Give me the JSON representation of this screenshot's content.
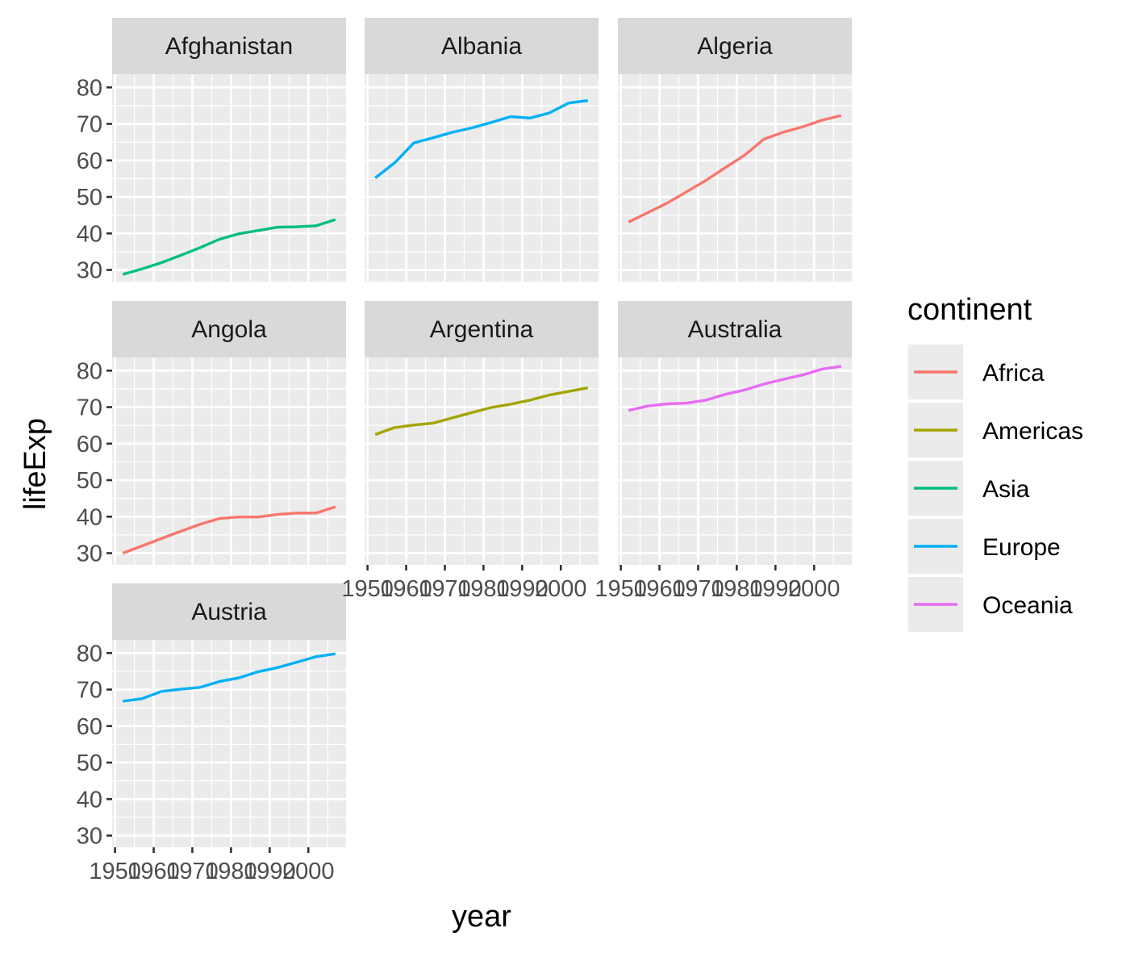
{
  "chart_data": {
    "type": "line",
    "xlabel": "year",
    "ylabel": "lifeExp",
    "xlim": [
      1949.25,
      2009.75
    ],
    "ylim": [
      26.8,
      83.6
    ],
    "x_major_ticks": [
      1950,
      1960,
      1970,
      1980,
      1990,
      2000
    ],
    "x_tick_labels": [
      "1950",
      "1960",
      "1970",
      "1980",
      "1990",
      "2000"
    ],
    "y_major_ticks": [
      30,
      40,
      50,
      60,
      70,
      80
    ],
    "y_tick_labels": [
      "30",
      "40",
      "50",
      "60",
      "70",
      "80"
    ],
    "grid": true,
    "legend": {
      "title": "continent",
      "placement": "right",
      "entries": [
        {
          "label": "Africa",
          "color": "#F8766D"
        },
        {
          "label": "Americas",
          "color": "#A3A500"
        },
        {
          "label": "Asia",
          "color": "#00BF7D"
        },
        {
          "label": "Europe",
          "color": "#00B0F6"
        },
        {
          "label": "Oceania",
          "color": "#E76BF3"
        }
      ]
    },
    "x": [
      1952,
      1957,
      1962,
      1967,
      1972,
      1977,
      1982,
      1987,
      1992,
      1997,
      2002,
      2007
    ],
    "facets": [
      {
        "country": "Afghanistan",
        "continent": "Asia",
        "values": [
          28.8,
          30.3,
          32.0,
          34.0,
          36.1,
          38.4,
          39.9,
          40.8,
          41.7,
          41.8,
          42.1,
          43.8
        ]
      },
      {
        "country": "Albania",
        "continent": "Europe",
        "values": [
          55.2,
          59.3,
          64.8,
          66.2,
          67.7,
          68.9,
          70.4,
          72.0,
          71.6,
          73.0,
          75.7,
          76.4
        ]
      },
      {
        "country": "Algeria",
        "continent": "Africa",
        "values": [
          43.1,
          45.7,
          48.3,
          51.4,
          54.5,
          58.0,
          61.4,
          65.8,
          67.7,
          69.2,
          71.0,
          72.3
        ]
      },
      {
        "country": "Angola",
        "continent": "Africa",
        "values": [
          30.0,
          32.0,
          34.0,
          36.0,
          37.9,
          39.5,
          39.9,
          39.9,
          40.6,
          41.0,
          41.0,
          42.7
        ]
      },
      {
        "country": "Argentina",
        "continent": "Americas",
        "values": [
          62.5,
          64.4,
          65.1,
          65.6,
          67.1,
          68.5,
          69.9,
          70.8,
          71.9,
          73.3,
          74.3,
          75.3
        ]
      },
      {
        "country": "Australia",
        "continent": "Oceania",
        "values": [
          69.1,
          70.3,
          70.9,
          71.1,
          71.9,
          73.5,
          74.7,
          76.3,
          77.6,
          78.8,
          80.4,
          81.2
        ]
      },
      {
        "country": "Austria",
        "continent": "Europe",
        "values": [
          66.8,
          67.5,
          69.5,
          70.1,
          70.6,
          72.2,
          73.2,
          74.9,
          76.0,
          77.5,
          79.0,
          79.8
        ]
      }
    ]
  }
}
